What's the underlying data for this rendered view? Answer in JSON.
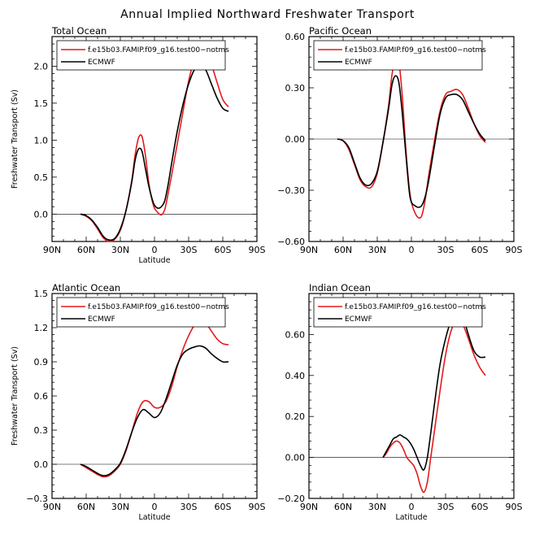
{
  "title": "Annual Implied Northward Freshwater Transport",
  "colors": {
    "model": "#e41a1c",
    "obs": "#000000"
  },
  "chart_data": [
    {
      "type": "line",
      "title": "Total Ocean",
      "xlabel": "Latitude",
      "ylabel": "Freshwater Transport (Sv)",
      "xlim": [
        -90,
        90
      ],
      "ylim": [
        -0.37,
        2.4
      ],
      "xticks": [
        -90,
        -60,
        -30,
        0,
        30,
        60,
        90
      ],
      "xtick_labels": [
        "90N",
        "60N",
        "30N",
        "0",
        "30S",
        "60S",
        "90S"
      ],
      "yticks": [
        0,
        0.5,
        1,
        1.5,
        2
      ],
      "ytick_labels": [
        "0.0",
        "0.5",
        "1.0",
        "1.5",
        "2.0"
      ],
      "zero_line": true,
      "legend": [
        "f.e15b03.FAMIP.f09_g16.test00−notms",
        "ECMWF"
      ],
      "legend_position": "top-left",
      "series": [
        {
          "name": "f.e15b03.FAMIP.f09_g16.test00−notms",
          "color": "#e41a1c",
          "x": [
            -65,
            -60,
            -55,
            -50,
            -45,
            -40,
            -35,
            -30,
            -25,
            -20,
            -17,
            -14,
            -11,
            -8,
            -5,
            -2,
            0,
            3,
            6,
            9,
            12,
            15,
            20,
            25,
            30,
            35,
            40,
            45,
            50,
            55,
            60,
            65
          ],
          "y": [
            0.0,
            -0.03,
            -0.09,
            -0.2,
            -0.32,
            -0.37,
            -0.34,
            -0.22,
            0.05,
            0.45,
            0.8,
            1.03,
            1.05,
            0.8,
            0.42,
            0.18,
            0.08,
            0.02,
            -0.01,
            0.06,
            0.28,
            0.52,
            0.95,
            1.38,
            1.8,
            2.08,
            2.2,
            2.18,
            2.02,
            1.78,
            1.55,
            1.45
          ]
        },
        {
          "name": "ECMWF",
          "color": "#000000",
          "x": [
            -65,
            -60,
            -55,
            -50,
            -45,
            -40,
            -35,
            -30,
            -25,
            -20,
            -17,
            -14,
            -11,
            -8,
            -5,
            -2,
            0,
            3,
            6,
            9,
            12,
            15,
            20,
            25,
            30,
            35,
            40,
            45,
            50,
            55,
            60,
            65
          ],
          "y": [
            0.0,
            -0.02,
            -0.08,
            -0.18,
            -0.3,
            -0.35,
            -0.33,
            -0.2,
            0.05,
            0.43,
            0.73,
            0.88,
            0.85,
            0.62,
            0.38,
            0.2,
            0.12,
            0.08,
            0.1,
            0.18,
            0.4,
            0.68,
            1.12,
            1.48,
            1.76,
            1.95,
            2.02,
            1.95,
            1.76,
            1.57,
            1.43,
            1.39
          ]
        }
      ]
    },
    {
      "type": "line",
      "title": "Pacific Ocean",
      "xlabel": "",
      "ylabel": "",
      "xlim": [
        -90,
        90
      ],
      "ylim": [
        -0.6,
        0.6
      ],
      "xticks": [
        -90,
        -60,
        -30,
        0,
        30,
        60,
        90
      ],
      "xtick_labels": [
        "90N",
        "60N",
        "30N",
        "0",
        "30S",
        "60S",
        "90S"
      ],
      "yticks": [
        -0.6,
        -0.3,
        0,
        0.3,
        0.6
      ],
      "ytick_labels": [
        "−0.60",
        "−0.30",
        "0.00",
        "0.30",
        "0.60"
      ],
      "zero_line": true,
      "legend": [
        "f.e15b03.FAMIP.f09_g16.test00−notms",
        "ECMWF"
      ],
      "legend_position": "top-left",
      "series": [
        {
          "name": "f.e15b03.FAMIP.f09_g16.test00−notms",
          "color": "#e41a1c",
          "x": [
            -65,
            -60,
            -55,
            -50,
            -45,
            -40,
            -35,
            -30,
            -25,
            -20,
            -17,
            -14,
            -11,
            -8,
            -5,
            -2,
            0,
            3,
            6,
            9,
            12,
            15,
            20,
            25,
            30,
            35,
            40,
            45,
            50,
            55,
            60,
            65
          ],
          "y": [
            0.0,
            -0.01,
            -0.06,
            -0.15,
            -0.24,
            -0.28,
            -0.28,
            -0.2,
            -0.02,
            0.2,
            0.38,
            0.46,
            0.45,
            0.25,
            -0.05,
            -0.28,
            -0.37,
            -0.43,
            -0.46,
            -0.45,
            -0.36,
            -0.22,
            -0.02,
            0.16,
            0.26,
            0.28,
            0.29,
            0.26,
            0.18,
            0.09,
            0.02,
            -0.02
          ]
        },
        {
          "name": "ECMWF",
          "color": "#000000",
          "x": [
            -65,
            -60,
            -55,
            -50,
            -45,
            -40,
            -35,
            -30,
            -25,
            -20,
            -17,
            -14,
            -11,
            -8,
            -5,
            -2,
            0,
            3,
            6,
            9,
            12,
            15,
            20,
            25,
            30,
            35,
            40,
            45,
            50,
            55,
            60,
            65
          ],
          "y": [
            0.0,
            -0.01,
            -0.05,
            -0.14,
            -0.23,
            -0.27,
            -0.26,
            -0.19,
            -0.02,
            0.18,
            0.32,
            0.37,
            0.33,
            0.15,
            -0.08,
            -0.3,
            -0.37,
            -0.39,
            -0.4,
            -0.39,
            -0.34,
            -0.25,
            -0.05,
            0.14,
            0.24,
            0.26,
            0.26,
            0.23,
            0.16,
            0.09,
            0.03,
            -0.01
          ]
        }
      ]
    },
    {
      "type": "line",
      "title": "Atlantic Ocean",
      "xlabel": "Latitude",
      "ylabel": "Freshwater Transport (Sv)",
      "xlim": [
        -90,
        90
      ],
      "ylim": [
        -0.3,
        1.5
      ],
      "xticks": [
        -90,
        -60,
        -30,
        0,
        30,
        60,
        90
      ],
      "xtick_labels": [
        "90N",
        "60N",
        "30N",
        "0",
        "30S",
        "60S",
        "90S"
      ],
      "yticks": [
        -0.3,
        0,
        0.3,
        0.6,
        0.9,
        1.2,
        1.5
      ],
      "ytick_labels": [
        "−0.3",
        "0.0",
        "0.3",
        "0.6",
        "0.9",
        "1.2",
        "1.5"
      ],
      "zero_line": true,
      "legend": [
        "f.e15b03.FAMIP.f09_g16.test00−notms",
        "ECMWF"
      ],
      "legend_position": "top-left",
      "series": [
        {
          "name": "f.e15b03.FAMIP.f09_g16.test00−notms",
          "color": "#e41a1c",
          "x": [
            -65,
            -60,
            -55,
            -50,
            -45,
            -40,
            -35,
            -30,
            -25,
            -20,
            -15,
            -10,
            -5,
            0,
            5,
            10,
            15,
            20,
            25,
            30,
            35,
            40,
            45,
            50,
            55,
            60,
            65
          ],
          "y": [
            0.0,
            -0.03,
            -0.06,
            -0.09,
            -0.11,
            -0.1,
            -0.06,
            0.0,
            0.12,
            0.28,
            0.45,
            0.55,
            0.55,
            0.5,
            0.5,
            0.55,
            0.68,
            0.86,
            1.01,
            1.13,
            1.22,
            1.26,
            1.24,
            1.17,
            1.1,
            1.06,
            1.05
          ]
        },
        {
          "name": "ECMWF",
          "color": "#000000",
          "x": [
            -65,
            -60,
            -55,
            -50,
            -45,
            -40,
            -35,
            -30,
            -25,
            -20,
            -15,
            -10,
            -5,
            0,
            5,
            10,
            15,
            20,
            25,
            30,
            35,
            40,
            45,
            50,
            55,
            60,
            65
          ],
          "y": [
            0.0,
            -0.02,
            -0.05,
            -0.08,
            -0.1,
            -0.09,
            -0.05,
            0.01,
            0.13,
            0.28,
            0.41,
            0.48,
            0.45,
            0.41,
            0.45,
            0.57,
            0.72,
            0.87,
            0.97,
            1.01,
            1.03,
            1.04,
            1.02,
            0.97,
            0.93,
            0.9,
            0.9
          ]
        }
      ]
    },
    {
      "type": "line",
      "title": "Indian Ocean",
      "xlabel": "Latitude",
      "ylabel": "",
      "xlim": [
        -90,
        90
      ],
      "ylim": [
        -0.2,
        0.8
      ],
      "xticks": [
        -90,
        -60,
        -30,
        0,
        30,
        60,
        90
      ],
      "xtick_labels": [
        "90N",
        "60N",
        "30N",
        "0",
        "30S",
        "60S",
        "90S"
      ],
      "yticks": [
        -0.2,
        0,
        0.2,
        0.4,
        0.6
      ],
      "ytick_labels": [
        "−0.20",
        "0.00",
        "0.20",
        "0.40",
        "0.60"
      ],
      "zero_line": true,
      "legend": [
        "f.e15b03.FAMIP.f09_g16.test00−notms",
        "ECMWF"
      ],
      "legend_position": "top-left",
      "series": [
        {
          "name": "f.e15b03.FAMIP.f09_g16.test00−notms",
          "color": "#e41a1c",
          "x": [
            -25,
            -22,
            -19,
            -16,
            -13,
            -10,
            -7,
            -4,
            -1,
            2,
            5,
            8,
            11,
            14,
            17,
            20,
            25,
            30,
            35,
            40,
            45,
            50,
            55,
            60,
            65
          ],
          "y": [
            0.0,
            0.02,
            0.05,
            0.07,
            0.08,
            0.07,
            0.04,
            0.0,
            -0.02,
            -0.04,
            -0.08,
            -0.14,
            -0.17,
            -0.12,
            0.0,
            0.12,
            0.32,
            0.5,
            0.62,
            0.67,
            0.65,
            0.58,
            0.5,
            0.44,
            0.4
          ]
        },
        {
          "name": "ECMWF",
          "color": "#000000",
          "x": [
            -25,
            -22,
            -19,
            -16,
            -13,
            -10,
            -7,
            -4,
            -1,
            2,
            5,
            8,
            11,
            14,
            17,
            20,
            25,
            30,
            35,
            40,
            45,
            50,
            55,
            60,
            65
          ],
          "y": [
            0.0,
            0.03,
            0.06,
            0.09,
            0.1,
            0.11,
            0.1,
            0.09,
            0.07,
            0.04,
            0.0,
            -0.04,
            -0.06,
            0.0,
            0.12,
            0.25,
            0.45,
            0.58,
            0.67,
            0.71,
            0.69,
            0.6,
            0.52,
            0.49,
            0.49
          ]
        }
      ]
    }
  ]
}
